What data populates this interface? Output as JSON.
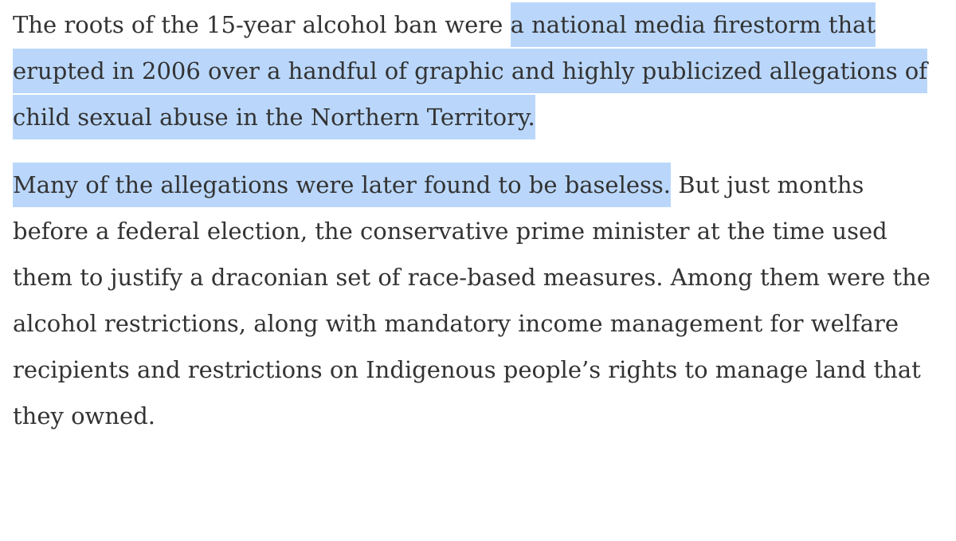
{
  "paragraphs": [
    {
      "segments": [
        {
          "text": "The roots of the 15-year alcohol ban were ",
          "highlighted": false
        },
        {
          "text": "a national media firestorm that erupted in 2006 over a handful of graphic and highly publicized allegations of child sexual abuse in the Northern Territory.",
          "highlighted": true
        }
      ]
    },
    {
      "segments": [
        {
          "text": "Many of the allegations were later found to be baseless.",
          "highlighted": true
        },
        {
          "text": " But just months before a federal election, the conservative prime minister at the time used them to justify a draconian set of race-based measures. Among them were the alcohol restrictions, along with mandatory income management for welfare recipients and restrictions on Indigenous people’s rights to manage land that they owned.",
          "highlighted": false
        }
      ]
    }
  ]
}
